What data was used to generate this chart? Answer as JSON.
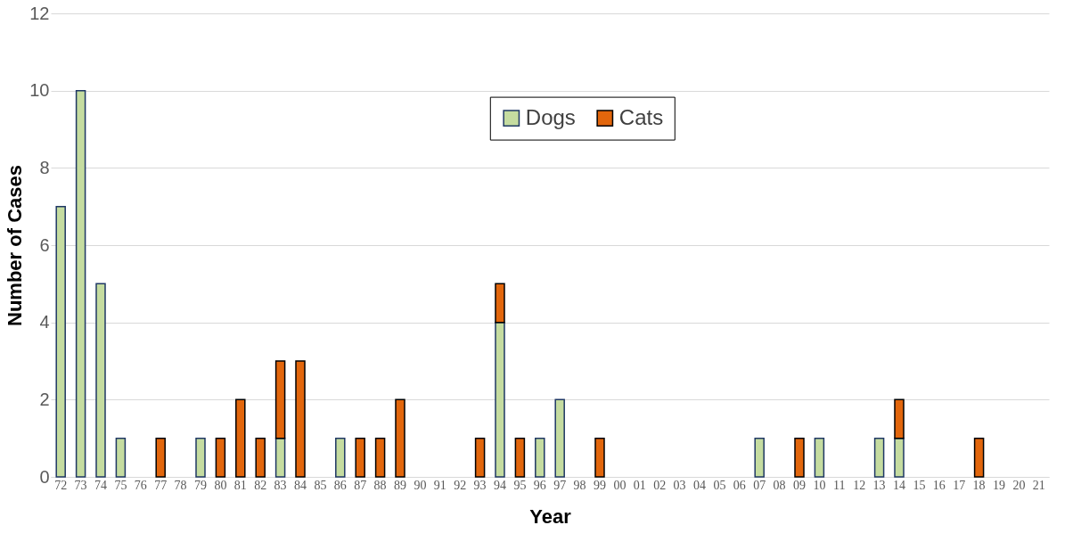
{
  "chart_data": {
    "type": "bar",
    "stacked": true,
    "xlabel": "Year",
    "ylabel": "Number of Cases",
    "categories": [
      "72",
      "73",
      "74",
      "75",
      "76",
      "77",
      "78",
      "79",
      "80",
      "81",
      "82",
      "83",
      "84",
      "85",
      "86",
      "87",
      "88",
      "89",
      "90",
      "91",
      "92",
      "93",
      "94",
      "95",
      "96",
      "97",
      "98",
      "99",
      "00",
      "01",
      "02",
      "03",
      "04",
      "05",
      "06",
      "07",
      "08",
      "09",
      "10",
      "11",
      "12",
      "13",
      "14",
      "15",
      "16",
      "17",
      "18",
      "19",
      "20",
      "21"
    ],
    "series": [
      {
        "name": "Dogs",
        "color": "#c5dca0",
        "values": [
          7,
          10,
          5,
          1,
          null,
          null,
          null,
          1,
          null,
          null,
          null,
          1,
          null,
          null,
          1,
          null,
          null,
          null,
          null,
          null,
          null,
          null,
          4,
          null,
          1,
          2,
          null,
          null,
          null,
          null,
          null,
          null,
          null,
          null,
          null,
          1,
          null,
          null,
          1,
          null,
          null,
          1,
          1,
          null,
          null,
          null,
          null,
          null,
          null,
          null
        ]
      },
      {
        "name": "Cats",
        "color": "#e2660c",
        "values": [
          null,
          null,
          null,
          null,
          null,
          1,
          null,
          null,
          1,
          2,
          1,
          2,
          3,
          null,
          null,
          1,
          1,
          2,
          null,
          null,
          null,
          1,
          1,
          1,
          null,
          null,
          null,
          1,
          null,
          null,
          null,
          null,
          null,
          null,
          null,
          null,
          null,
          1,
          null,
          null,
          null,
          null,
          1,
          null,
          null,
          null,
          1,
          null,
          null,
          null
        ]
      }
    ],
    "ylim": [
      0,
      12
    ],
    "yticks": [
      0,
      2,
      4,
      6,
      8,
      10,
      12
    ],
    "grid": "y",
    "legend": "top"
  }
}
